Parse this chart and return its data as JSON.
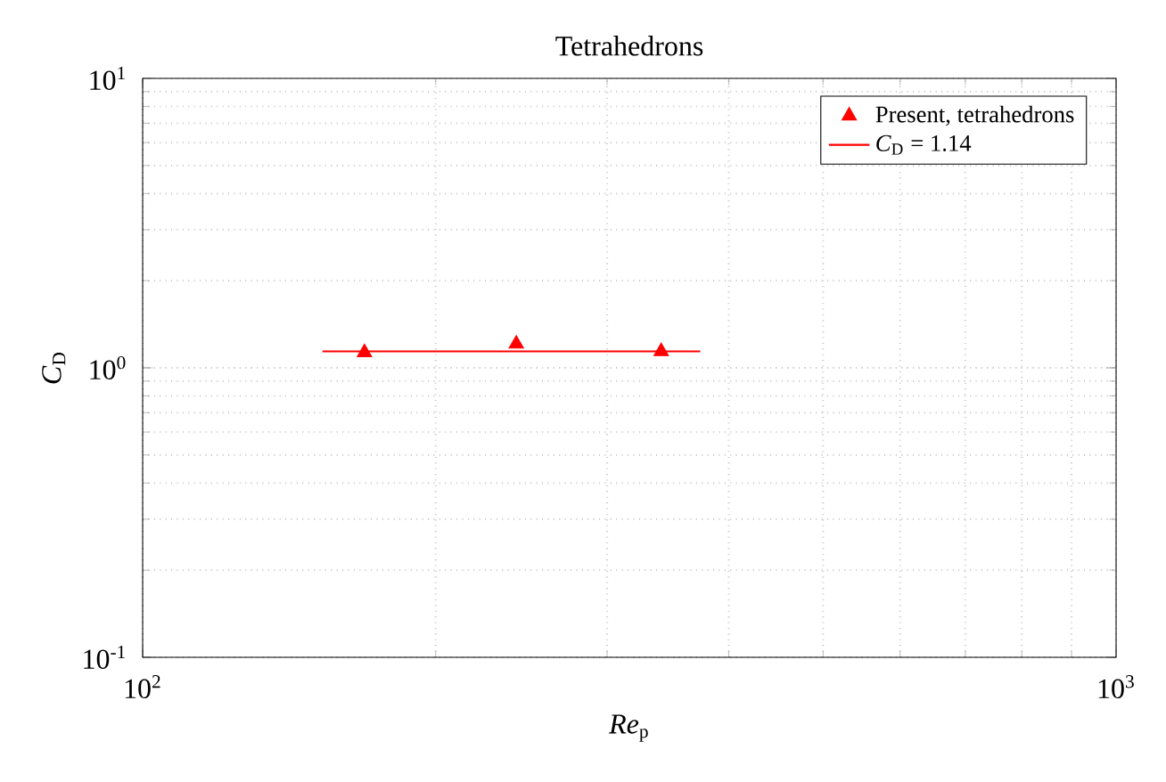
{
  "chart_data": {
    "type": "scatter",
    "title": "Tetrahedrons",
    "xlabel": "*Re*$_{p}$",
    "ylabel": "*C*$_{D}$",
    "series": [
      {
        "name": "Present, tetrahedrons",
        "color": "#ff0000",
        "marker": "triangle",
        "x": [
          169,
          242,
          341
        ],
        "values": [
          1.13,
          1.21,
          1.14
        ]
      },
      {
        "name": "*C*$_{D}$ = 1.14",
        "type": "line",
        "color": "#ff0000",
        "marker": "none",
        "line_style": "solid",
        "x": [
          153,
          374
        ],
        "values": [
          1.14,
          1.14
        ]
      }
    ],
    "log": "xy",
    "xlim": [
      100,
      1000
    ],
    "ylim": [
      0.1,
      10
    ],
    "xticks": [
      {
        "value": 100,
        "label": "10$^{2}$"
      },
      {
        "value": 1000,
        "label": "10$^{3}$"
      }
    ],
    "yticks": [
      {
        "value": 0.1,
        "label": "10$^{-1}$"
      },
      {
        "value": 1,
        "label": "10$^{0}$"
      },
      {
        "value": 10,
        "label": "10$^{1}$"
      }
    ],
    "grid": true,
    "legend": "top right"
  }
}
